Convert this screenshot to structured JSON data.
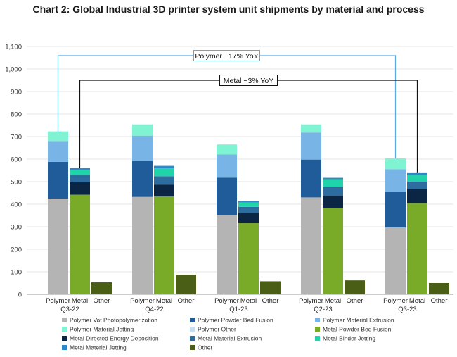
{
  "chart_data": {
    "type": "bar",
    "title": "Chart 2: Global Industrial 3D printer system unit shipments by material and process",
    "ylim": [
      0,
      1100
    ],
    "yticks": [
      "0",
      "100",
      "200",
      "300",
      "400",
      "500",
      "600",
      "700",
      "800",
      "900",
      "1,000",
      "1,100"
    ],
    "grid": true,
    "legend_position": "bottom",
    "quarters": [
      "Q3-22",
      "Q4-22",
      "Q1-23",
      "Q2-23",
      "Q3-23"
    ],
    "bar_labels": [
      "Polymer",
      "Metal",
      "Other"
    ],
    "series": [
      {
        "name": "Polymer Vat Photopolymerization",
        "color": "#b4b4b4",
        "group": "Polymer",
        "values": [
          425,
          432,
          352,
          430,
          297
        ]
      },
      {
        "name": "Polymer Powder Bed Fusion",
        "color": "#1f5c99",
        "group": "Polymer",
        "values": [
          163,
          160,
          166,
          168,
          160
        ]
      },
      {
        "name": "Polymer Material Extrusion",
        "color": "#78b4e6",
        "group": "Polymer",
        "values": [
          92,
          112,
          103,
          120,
          98
        ]
      },
      {
        "name": "Polymer Material Jetting",
        "color": "#7ff3d2",
        "group": "Polymer",
        "values": [
          43,
          50,
          44,
          36,
          48
        ]
      },
      {
        "name": "Polymer Other",
        "color": "#c9def0",
        "group": "Polymer",
        "values": [
          0,
          0,
          0,
          0,
          0
        ]
      },
      {
        "name": "Metal Powder Bed Fusion",
        "color": "#7aab28",
        "group": "Metal",
        "values": [
          442,
          434,
          318,
          383,
          405
        ]
      },
      {
        "name": "Metal Directed Energy Deposition",
        "color": "#0b2545",
        "group": "Metal",
        "values": [
          55,
          53,
          43,
          54,
          62
        ]
      },
      {
        "name": "Metal Material Extrusion",
        "color": "#2d6c9e",
        "group": "Metal",
        "values": [
          33,
          37,
          27,
          41,
          33
        ]
      },
      {
        "name": "Metal Binder Jetting",
        "color": "#1ed4a8",
        "group": "Metal",
        "values": [
          22,
          35,
          20,
          33,
          30
        ]
      },
      {
        "name": "Metal Material Jetting",
        "color": "#2f88c8",
        "group": "Metal",
        "values": [
          8,
          11,
          7,
          6,
          11
        ]
      },
      {
        "name": "Other",
        "color": "#4a5e16",
        "group": "Other",
        "values": [
          53,
          87,
          58,
          62,
          50
        ]
      }
    ],
    "annotations": [
      {
        "text": "Polymer −17% YoY",
        "from_quarter": "Q3-22",
        "to_quarter": "Q3-23",
        "bar": "Polymer",
        "color": "#5aa9e6"
      },
      {
        "text": "Metal −3% YoY",
        "from_quarter": "Q3-22",
        "to_quarter": "Q3-23",
        "bar": "Metal",
        "color": "#111111"
      }
    ]
  }
}
